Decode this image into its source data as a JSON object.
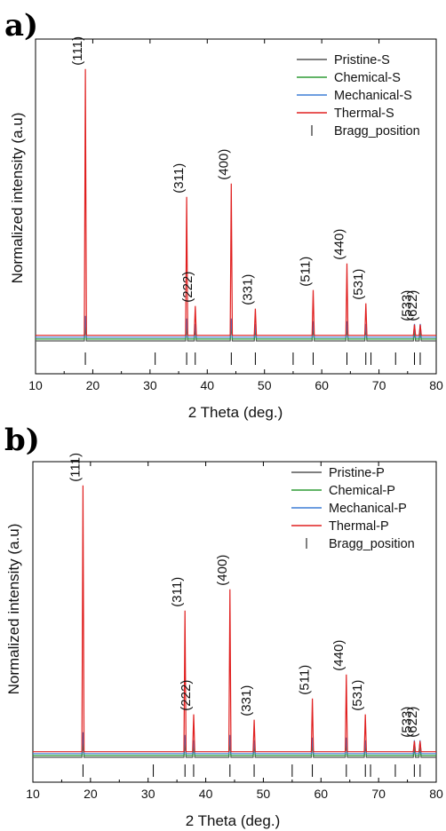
{
  "chart_data": [
    {
      "panel_label": "a)",
      "type": "line",
      "xlabel": "2 Theta (deg.)",
      "ylabel": "Normalized intensity (a.u)",
      "xlim": [
        10,
        80
      ],
      "xticks": [
        "10",
        "20",
        "30",
        "40",
        "50",
        "60",
        "70",
        "80"
      ],
      "legend_position": "top-right",
      "series": [
        {
          "name": "Pristine-S",
          "color": "#555555",
          "offset": 0.0,
          "peaks": [
            [
              18.7,
              0.06
            ],
            [
              36.4,
              0.06
            ],
            [
              37.9,
              0.05
            ],
            [
              44.2,
              0.06
            ],
            [
              48.4,
              0.05
            ],
            [
              58.5,
              0.06
            ],
            [
              64.4,
              0.06
            ],
            [
              67.7,
              0.05
            ],
            [
              76.2,
              0.04
            ],
            [
              77.2,
              0.04
            ]
          ]
        },
        {
          "name": "Chemical-S",
          "color": "#2e9b35",
          "offset": 0.03,
          "peaks": [
            [
              18.7,
              0.07
            ],
            [
              36.4,
              0.06
            ],
            [
              37.9,
              0.05
            ],
            [
              44.2,
              0.06
            ],
            [
              48.4,
              0.05
            ],
            [
              58.5,
              0.06
            ],
            [
              64.4,
              0.06
            ],
            [
              67.7,
              0.05
            ],
            [
              76.2,
              0.04
            ],
            [
              77.2,
              0.04
            ]
          ]
        },
        {
          "name": "Mechanical-S",
          "color": "#3f7fd6",
          "offset": 0.06,
          "peaks": [
            [
              18.7,
              0.08
            ],
            [
              36.4,
              0.07
            ],
            [
              37.9,
              0.05
            ],
            [
              44.2,
              0.07
            ],
            [
              48.4,
              0.05
            ],
            [
              58.5,
              0.06
            ],
            [
              64.4,
              0.06
            ],
            [
              67.7,
              0.05
            ],
            [
              76.2,
              0.05
            ],
            [
              77.2,
              0.05
            ]
          ]
        },
        {
          "name": "Thermal-S",
          "color": "#e02020",
          "offset": 0.09,
          "peaks": [
            [
              18.7,
              1.0
            ],
            [
              36.4,
              0.52
            ],
            [
              37.9,
              0.11
            ],
            [
              44.2,
              0.57
            ],
            [
              48.4,
              0.1
            ],
            [
              58.5,
              0.17
            ],
            [
              64.4,
              0.27
            ],
            [
              67.7,
              0.12
            ],
            [
              76.2,
              0.04
            ],
            [
              77.2,
              0.04
            ]
          ]
        }
      ],
      "bragg_label": "Bragg_position",
      "bragg_positions": [
        18.7,
        30.9,
        36.4,
        37.9,
        44.2,
        48.4,
        55.0,
        58.5,
        64.4,
        67.7,
        68.6,
        72.9,
        76.2,
        77.2
      ],
      "peak_labels": [
        {
          "text": "(111)",
          "x": 18.7
        },
        {
          "text": "(311)",
          "x": 36.4
        },
        {
          "text": "(222)",
          "x": 37.9
        },
        {
          "text": "(400)",
          "x": 44.2
        },
        {
          "text": "(331)",
          "x": 48.4
        },
        {
          "text": "(511)",
          "x": 58.5
        },
        {
          "text": "(440)",
          "x": 64.4
        },
        {
          "text": "(531)",
          "x": 67.7
        },
        {
          "text": "(533)",
          "x": 76.2
        },
        {
          "text": "(622)",
          "x": 77.2
        }
      ]
    },
    {
      "panel_label": "b)",
      "type": "line",
      "xlabel": "2 Theta (deg.)",
      "ylabel": "Normalized intensity (a.u)",
      "xlim": [
        10,
        80
      ],
      "xticks": [
        "10",
        "20",
        "30",
        "40",
        "50",
        "60",
        "70",
        "80"
      ],
      "legend_position": "top-right",
      "series": [
        {
          "name": "Pristine-P",
          "color": "#555555",
          "offset": 0.0,
          "peaks": [
            [
              18.7,
              0.06
            ],
            [
              36.4,
              0.06
            ],
            [
              37.9,
              0.05
            ],
            [
              44.2,
              0.06
            ],
            [
              48.4,
              0.05
            ],
            [
              58.5,
              0.06
            ],
            [
              64.4,
              0.06
            ],
            [
              67.7,
              0.05
            ],
            [
              76.2,
              0.04
            ],
            [
              77.2,
              0.04
            ]
          ]
        },
        {
          "name": "Chemical-P",
          "color": "#2e9b35",
          "offset": 0.03,
          "peaks": [
            [
              18.7,
              0.07
            ],
            [
              36.4,
              0.06
            ],
            [
              37.9,
              0.05
            ],
            [
              44.2,
              0.06
            ],
            [
              48.4,
              0.05
            ],
            [
              58.5,
              0.06
            ],
            [
              64.4,
              0.06
            ],
            [
              67.7,
              0.05
            ],
            [
              76.2,
              0.04
            ],
            [
              77.2,
              0.04
            ]
          ]
        },
        {
          "name": "Mechanical-P",
          "color": "#3f7fd6",
          "offset": 0.06,
          "peaks": [
            [
              18.7,
              0.08
            ],
            [
              36.4,
              0.07
            ],
            [
              37.9,
              0.05
            ],
            [
              44.2,
              0.07
            ],
            [
              48.4,
              0.05
            ],
            [
              58.5,
              0.06
            ],
            [
              64.4,
              0.06
            ],
            [
              67.7,
              0.05
            ],
            [
              76.2,
              0.05
            ],
            [
              77.2,
              0.05
            ]
          ]
        },
        {
          "name": "Thermal-P",
          "color": "#e02020",
          "offset": 0.09,
          "peaks": [
            [
              18.7,
              1.0
            ],
            [
              36.4,
              0.53
            ],
            [
              37.9,
              0.14
            ],
            [
              44.2,
              0.61
            ],
            [
              48.4,
              0.12
            ],
            [
              58.5,
              0.2
            ],
            [
              64.4,
              0.29
            ],
            [
              67.7,
              0.14
            ],
            [
              76.2,
              0.04
            ],
            [
              77.2,
              0.04
            ]
          ]
        }
      ],
      "bragg_label": "Bragg_position",
      "bragg_positions": [
        18.7,
        30.9,
        36.4,
        37.9,
        44.2,
        48.4,
        55.0,
        58.5,
        64.4,
        67.7,
        68.6,
        72.9,
        76.2,
        77.2
      ],
      "peak_labels": [
        {
          "text": "(111)",
          "x": 18.7
        },
        {
          "text": "(311)",
          "x": 36.4
        },
        {
          "text": "(222)",
          "x": 37.9
        },
        {
          "text": "(400)",
          "x": 44.2
        },
        {
          "text": "(331)",
          "x": 48.4
        },
        {
          "text": "(511)",
          "x": 58.5
        },
        {
          "text": "(440)",
          "x": 64.4
        },
        {
          "text": "(531)",
          "x": 67.7
        },
        {
          "text": "(533)",
          "x": 76.2
        },
        {
          "text": "(622)",
          "x": 77.2
        }
      ]
    }
  ]
}
